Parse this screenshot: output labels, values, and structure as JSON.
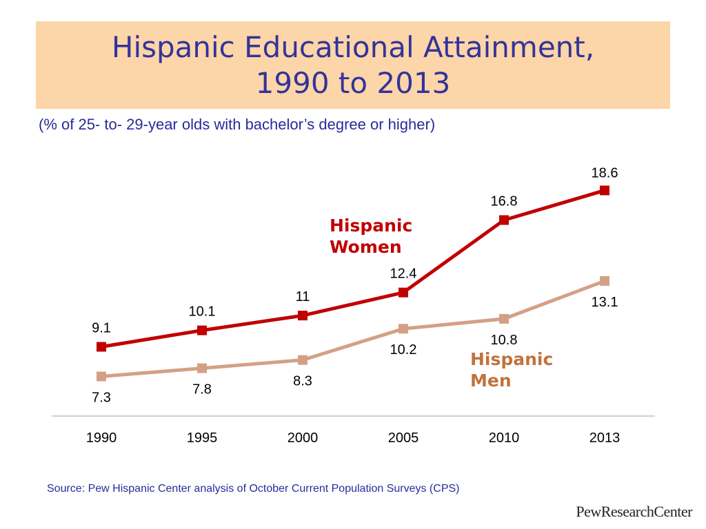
{
  "title": {
    "line1": "Hispanic Educational Attainment,",
    "line2": "1990 to 2013"
  },
  "subtitle": "(% of 25- to- 29-year olds with bachelor’s degree or higher)",
  "source": "Source: Pew Hispanic Center analysis of October Current Population Surveys (CPS)",
  "logo": {
    "part1": "Pew",
    "part2": "Research",
    "part3": "Center"
  },
  "chart_data": {
    "type": "line",
    "categories": [
      "1990",
      "1995",
      "2000",
      "2005",
      "2010",
      "2013"
    ],
    "ylim": [
      0,
      20
    ],
    "grid": false,
    "series": [
      {
        "name": "Hispanic Women",
        "name_lines": [
          "Hispanic",
          "Women"
        ],
        "color": "#c00000",
        "values": [
          9.1,
          10.1,
          11,
          12.4,
          16.8,
          18.6
        ],
        "labels": [
          "9.1",
          "10.1",
          "11",
          "12.4",
          "16.8",
          "18.6"
        ]
      },
      {
        "name": "Hispanic Men",
        "name_lines": [
          "Hispanic",
          "Men"
        ],
        "color": "#d4a085",
        "label_color": "#c0733f",
        "values": [
          7.3,
          7.8,
          8.3,
          10.2,
          10.8,
          13.1
        ],
        "labels": [
          "7.3",
          "7.8",
          "8.3",
          "10.2",
          "10.8",
          "13.1"
        ]
      }
    ]
  }
}
